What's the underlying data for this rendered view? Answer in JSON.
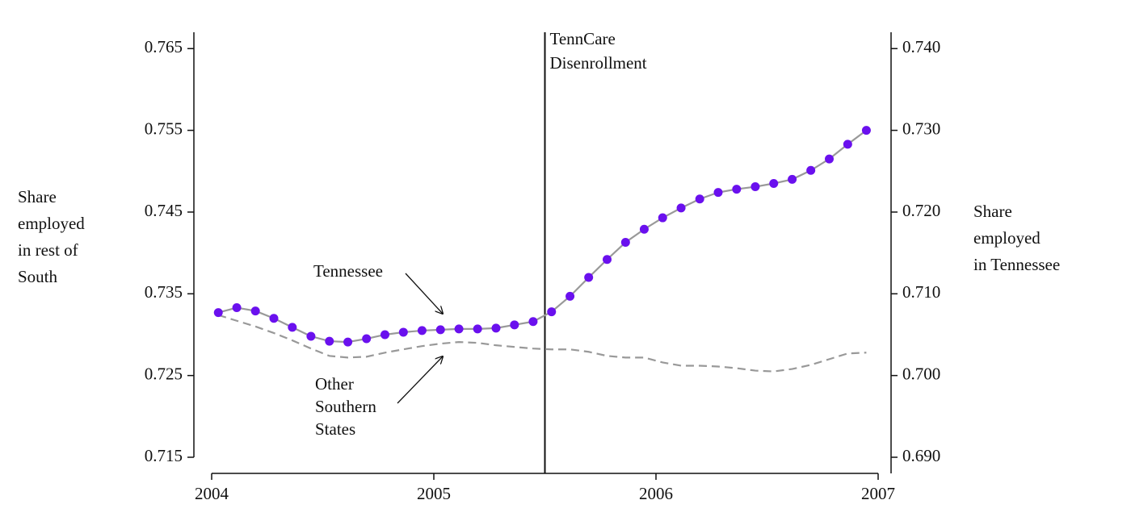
{
  "chart_data": {
    "type": "line",
    "x": [
      2004.03,
      2004.113,
      2004.197,
      2004.28,
      2004.363,
      2004.447,
      2004.53,
      2004.613,
      2004.697,
      2004.78,
      2004.863,
      2004.947,
      2005.03,
      2005.113,
      2005.197,
      2005.28,
      2005.363,
      2005.447,
      2005.53,
      2005.613,
      2005.697,
      2005.78,
      2005.863,
      2005.947,
      2006.03,
      2006.113,
      2006.197,
      2006.28,
      2006.363,
      2006.447,
      2006.53,
      2006.613,
      2006.697,
      2006.78,
      2006.863,
      2006.947
    ],
    "series": [
      {
        "name": "Tennessee",
        "axis": "y2",
        "color": "#6a10ee",
        "line_color": "#999999",
        "values": [
          0.7077,
          0.7083,
          0.7079,
          0.707,
          0.7059,
          0.7048,
          0.7042,
          0.7041,
          0.7045,
          0.705,
          0.7053,
          0.7055,
          0.7056,
          0.7057,
          0.7057,
          0.7058,
          0.7062,
          0.7066,
          0.7078,
          0.7097,
          0.712,
          0.7142,
          0.7163,
          0.7179,
          0.7193,
          0.7205,
          0.7216,
          0.7224,
          0.7228,
          0.7231,
          0.7235,
          0.724,
          0.7251,
          0.7265,
          0.7283,
          0.73
        ]
      },
      {
        "name": "Other Southern States",
        "color": "#999999",
        "dashed": true,
        "values": [
          0.7324,
          0.7317,
          0.731,
          0.7302,
          0.7293,
          0.7283,
          0.7274,
          0.7272,
          0.7273,
          0.7278,
          0.7282,
          0.7286,
          0.7289,
          0.7291,
          0.729,
          0.7287,
          0.7285,
          0.7283,
          0.7282,
          0.7282,
          0.7279,
          0.7274,
          0.7272,
          0.7272,
          0.7266,
          0.7262,
          0.7262,
          0.7261,
          0.7259,
          0.7256,
          0.7255,
          0.7258,
          0.7263,
          0.727,
          0.7277,
          0.7278
        ]
      }
    ],
    "ylabel": [
      "Share",
      "employed",
      "in rest of",
      "South"
    ],
    "y2label": [
      "Share",
      "employed",
      "in Tennessee"
    ],
    "xlim": [
      2004,
      2007
    ],
    "xticks": [
      2004,
      2005,
      2006,
      2007
    ],
    "ylim": [
      0.715,
      0.767
    ],
    "yticks": [
      0.765,
      0.755,
      0.745,
      0.735,
      0.725,
      0.715
    ],
    "y2lim": [
      0.69,
      0.742
    ],
    "y2ticks": [
      {
        "value": 0.74,
        "label": "0.740"
      },
      {
        "value": 0.73,
        "label": "0.730"
      },
      {
        "value": 0.72,
        "label": "0.720"
      },
      {
        "value": 0.71,
        "label": "0.710"
      },
      {
        "value": 0.7,
        "label": "0.700"
      },
      {
        "value": 0.69,
        "label": "0.690"
      }
    ],
    "vline": {
      "x": 2005.5,
      "label": [
        "TennCare",
        "Disenrollment"
      ]
    }
  }
}
